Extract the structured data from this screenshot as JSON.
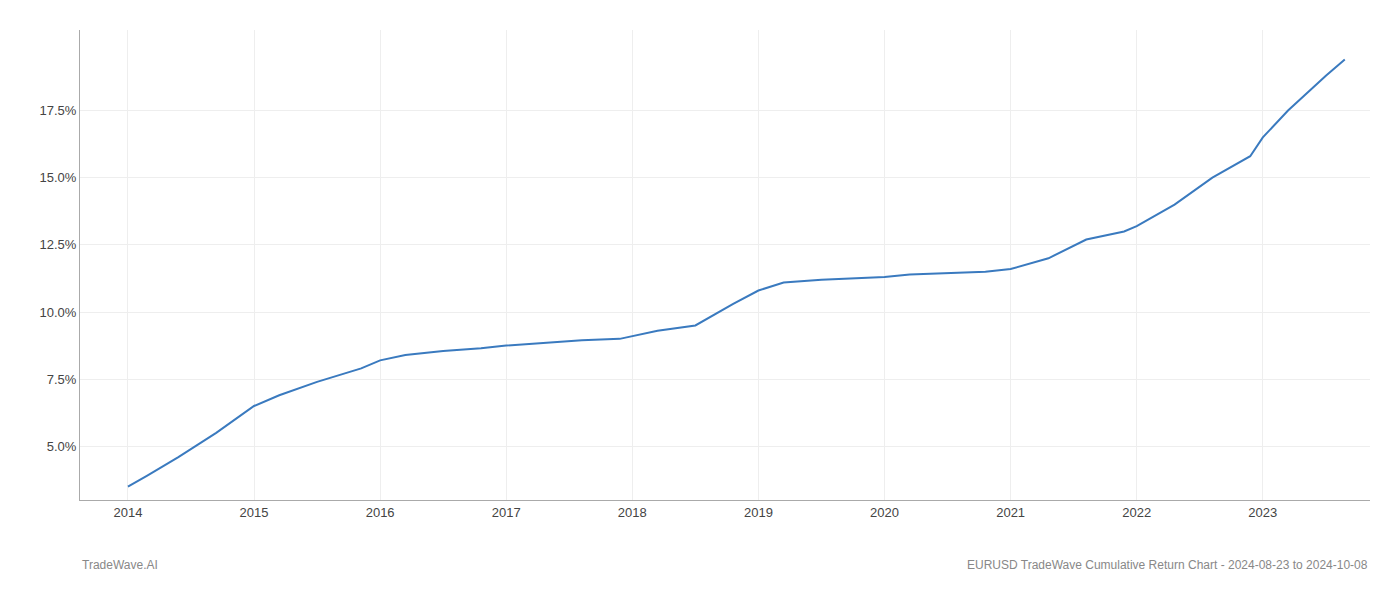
{
  "chart_data": {
    "type": "line",
    "x": [
      2014.0,
      2014.15,
      2014.4,
      2014.7,
      2015.0,
      2015.2,
      2015.5,
      2015.85,
      2016.0,
      2016.2,
      2016.5,
      2016.8,
      2017.0,
      2017.3,
      2017.6,
      2017.9,
      2018.0,
      2018.2,
      2018.5,
      2018.8,
      2019.0,
      2019.2,
      2019.5,
      2019.8,
      2020.0,
      2020.2,
      2020.5,
      2020.8,
      2021.0,
      2021.3,
      2021.6,
      2021.9,
      2022.0,
      2022.3,
      2022.6,
      2022.9,
      2023.0,
      2023.2,
      2023.5,
      2023.65
    ],
    "values": [
      3.5,
      3.9,
      4.6,
      5.5,
      6.5,
      6.9,
      7.4,
      7.9,
      8.2,
      8.4,
      8.55,
      8.65,
      8.75,
      8.85,
      8.95,
      9.0,
      9.1,
      9.3,
      9.5,
      10.3,
      10.8,
      11.1,
      11.2,
      11.25,
      11.3,
      11.4,
      11.45,
      11.5,
      11.6,
      12.0,
      12.7,
      13.0,
      13.2,
      14.0,
      15.0,
      15.8,
      16.5,
      17.5,
      18.8,
      19.4
    ],
    "color": "#3a7abf",
    "xlim": [
      2013.62,
      2023.85
    ],
    "ylim": [
      3.0,
      20.5
    ],
    "xticks": [
      2014,
      2015,
      2016,
      2017,
      2018,
      2019,
      2020,
      2021,
      2022,
      2023
    ],
    "yticks": [
      {
        "value": 5.0,
        "label": "5.0%"
      },
      {
        "value": 7.5,
        "label": "7.5%"
      },
      {
        "value": 10.0,
        "label": "10.0%"
      },
      {
        "value": 12.5,
        "label": "12.5%"
      },
      {
        "value": 15.0,
        "label": "15.0%"
      },
      {
        "value": 17.5,
        "label": "17.5%"
      }
    ],
    "grid": true,
    "annotations": [
      "TradeWave.AI",
      "EURUSD TradeWave Cumulative Return Chart - 2024-08-23 to 2024-10-08"
    ]
  }
}
